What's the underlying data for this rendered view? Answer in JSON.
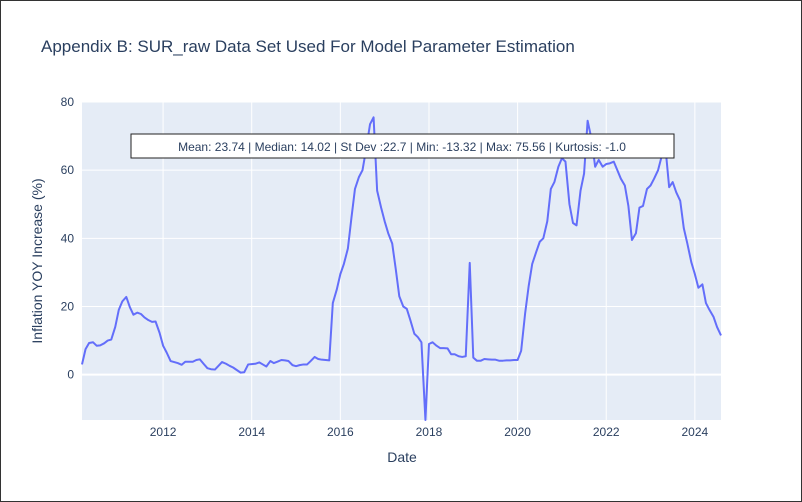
{
  "chart_data": {
    "type": "line",
    "title": "Appendix B: SUR_raw Data Set Used For Model Parameter Estimation",
    "xlabel": "Date",
    "ylabel": "Inflation YOY Increase (%)",
    "annotation": "Mean: 23.74 | Median: 14.02 | St Dev :22.7 | Min: -13.32 | Max: 75.56 | Kurtosis: -1.0",
    "xlim": [
      2010.17,
      2024.59
    ],
    "ylim": [
      -13.3,
      80
    ],
    "x_ticks": [
      2012,
      2014,
      2016,
      2018,
      2020,
      2022,
      2024
    ],
    "y_ticks": [
      0,
      20,
      40,
      60,
      80
    ],
    "grid": true,
    "colors": {
      "line": "#636efa",
      "plot_bg": "#e5ecf6",
      "grid": "#ffffff",
      "text": "#2a3f5f"
    },
    "series": [
      {
        "x": [
          2010.17,
          2010.25,
          2010.33,
          2010.42,
          2010.5,
          2010.58,
          2010.67,
          2010.75,
          2010.83,
          2010.92,
          2011.0,
          2011.08,
          2011.17,
          2011.25,
          2011.33,
          2011.42,
          2011.5,
          2011.58,
          2011.67,
          2011.75,
          2011.83,
          2011.92,
          2012.0,
          2012.08,
          2012.17,
          2012.25,
          2012.33,
          2012.42,
          2012.5,
          2012.58,
          2012.67,
          2012.75,
          2012.83,
          2012.92,
          2013.0,
          2013.08,
          2013.17,
          2013.25,
          2013.33,
          2013.42,
          2013.5,
          2013.58,
          2013.67,
          2013.75,
          2013.83,
          2013.92,
          2014.0,
          2014.08,
          2014.17,
          2014.25,
          2014.33,
          2014.42,
          2014.5,
          2014.58,
          2014.67,
          2014.75,
          2014.83,
          2014.92,
          2015.0,
          2015.08,
          2015.17,
          2015.25,
          2015.33,
          2015.42,
          2015.5,
          2015.58,
          2015.67,
          2015.75,
          2015.83,
          2015.92,
          2016.0,
          2016.08,
          2016.17,
          2016.25,
          2016.33,
          2016.42,
          2016.5,
          2016.58,
          2016.67,
          2016.75,
          2016.83,
          2016.92,
          2017.0,
          2017.08,
          2017.17,
          2017.25,
          2017.33,
          2017.42,
          2017.5,
          2017.58,
          2017.67,
          2017.75,
          2017.83,
          2017.92,
          2018.0,
          2018.08,
          2018.17,
          2018.25,
          2018.33,
          2018.42,
          2018.5,
          2018.58,
          2018.67,
          2018.75,
          2018.83,
          2018.92,
          2019.0,
          2019.08,
          2019.17,
          2019.25,
          2019.33,
          2019.42,
          2019.5,
          2019.58,
          2019.67,
          2019.75,
          2019.83,
          2019.92,
          2020.0,
          2020.08,
          2020.17,
          2020.25,
          2020.33,
          2020.42,
          2020.5,
          2020.58,
          2020.67,
          2020.75,
          2020.83,
          2020.92,
          2021.0,
          2021.08,
          2021.17,
          2021.25,
          2021.33,
          2021.42,
          2021.5,
          2021.58,
          2021.67,
          2021.75,
          2021.83,
          2021.92,
          2022.0,
          2022.08,
          2022.17,
          2022.25,
          2022.33,
          2022.42,
          2022.5,
          2022.58,
          2022.67,
          2022.75,
          2022.83,
          2022.92,
          2023.0,
          2023.08,
          2023.17,
          2023.25,
          2023.33,
          2023.42,
          2023.5,
          2023.58,
          2023.67,
          2023.75,
          2023.83,
          2023.92,
          2024.0,
          2024.08,
          2024.17,
          2024.25,
          2024.33,
          2024.42,
          2024.5,
          2024.59
        ],
        "values": [
          3.0,
          7.5,
          9.3,
          9.5,
          8.5,
          8.6,
          9.2,
          10.0,
          10.3,
          14.0,
          19.0,
          21.5,
          22.8,
          19.8,
          17.6,
          18.2,
          17.8,
          16.8,
          16.0,
          15.5,
          15.6,
          12.3,
          8.5,
          6.5,
          4.0,
          3.7,
          3.4,
          2.9,
          3.8,
          3.8,
          3.8,
          4.3,
          4.5,
          3.1,
          1.9,
          1.6,
          1.5,
          2.6,
          3.7,
          3.2,
          2.6,
          2.1,
          1.3,
          0.6,
          0.7,
          3.0,
          3.1,
          3.2,
          3.6,
          3.0,
          2.4,
          4.0,
          3.4,
          3.8,
          4.3,
          4.2,
          4.0,
          2.8,
          2.5,
          2.8,
          3.0,
          3.0,
          4.0,
          5.2,
          4.6,
          4.4,
          4.3,
          4.2,
          21.0,
          25.0,
          29.5,
          32.5,
          37.0,
          46.0,
          54.5,
          58.0,
          60.0,
          66.0,
          73.5,
          75.5,
          54.0,
          49.0,
          45.0,
          41.5,
          38.5,
          31.0,
          23.0,
          20.0,
          19.3,
          16.0,
          12.0,
          11.0,
          9.5,
          -13.3,
          9.0,
          9.5,
          8.5,
          7.8,
          7.8,
          7.7,
          6.0,
          6.0,
          5.4,
          5.2,
          5.4,
          32.8,
          5.0,
          4.1,
          4.1,
          4.6,
          4.5,
          4.4,
          4.4,
          4.1,
          4.1,
          4.2,
          4.2,
          4.3,
          4.3,
          7.0,
          18.0,
          26.0,
          32.5,
          36.0,
          39.0,
          40.0,
          45.0,
          54.5,
          56.5,
          61.0,
          63.5,
          62.5,
          50.0,
          44.5,
          43.8,
          54.0,
          59.0,
          74.5,
          69.0,
          61.0,
          63.0,
          61.0,
          61.8,
          62.0,
          62.5,
          60.0,
          57.5,
          55.5,
          49.5,
          39.5,
          41.5,
          49.0,
          49.5,
          54.5,
          55.5,
          57.5,
          60.0,
          64.0,
          67.5,
          55.0,
          56.5,
          53.5,
          51.0,
          43.0,
          38.5,
          33.0,
          29.5,
          25.5,
          26.5,
          21.0,
          19.0,
          17.0,
          14.0,
          11.5
        ]
      }
    ]
  }
}
